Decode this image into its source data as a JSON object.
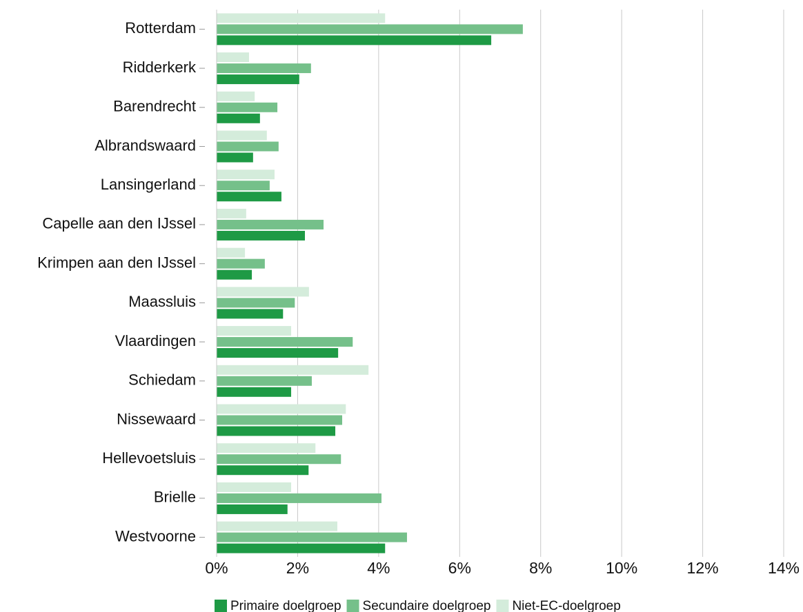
{
  "chart_data": {
    "type": "barh",
    "categories": [
      "Rotterdam",
      "Ridderkerk",
      "Barendrecht",
      "Albrandswaard",
      "Lansingerland",
      "Capelle aan den IJssel",
      "Krimpen aan den IJssel",
      "Maassluis",
      "Vlaardingen",
      "Schiedam",
      "Nissewaard",
      "Hellevoetsluis",
      "Brielle",
      "Westvoorne"
    ],
    "series": [
      {
        "name": "Primaire doelgroep",
        "color": "#1e9a45",
        "values": [
          6.78,
          2.04,
          1.07,
          0.9,
          1.6,
          2.18,
          0.87,
          1.64,
          3.0,
          1.84,
          2.93,
          2.27,
          1.75,
          4.16
        ]
      },
      {
        "name": "Secundaire doelgroep",
        "color": "#75c08a",
        "values": [
          7.56,
          2.33,
          1.5,
          1.53,
          1.31,
          2.64,
          1.19,
          1.93,
          3.36,
          2.35,
          3.1,
          3.07,
          4.07,
          4.7
        ]
      },
      {
        "name": "Niet-EC-doelgroep",
        "color": "#d4ecdb",
        "values": [
          4.16,
          0.8,
          0.94,
          1.24,
          1.43,
          0.73,
          0.7,
          2.28,
          1.84,
          3.75,
          3.19,
          2.44,
          1.84,
          2.98
        ]
      }
    ],
    "xlim": [
      0,
      14
    ],
    "xticks": [
      {
        "value": 0,
        "label": "0%"
      },
      {
        "value": 2,
        "label": "2%"
      },
      {
        "value": 4,
        "label": "4%"
      },
      {
        "value": 6,
        "label": "6%"
      },
      {
        "value": 8,
        "label": "8%"
      },
      {
        "value": 10,
        "label": "10%"
      },
      {
        "value": 12,
        "label": "12%"
      },
      {
        "value": 14,
        "label": "14%"
      }
    ],
    "grid": true,
    "legend": "bottom"
  }
}
